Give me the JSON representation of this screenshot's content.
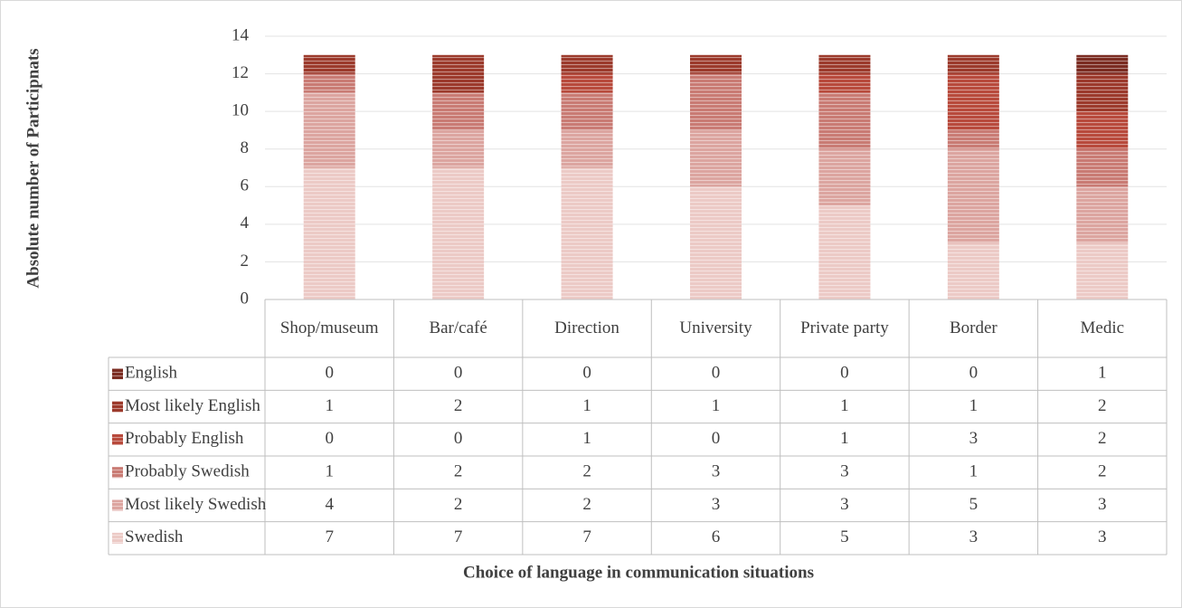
{
  "chart_data": {
    "type": "stacked_bar",
    "ylabel": "Absolute number of Participnats",
    "xlabel": "Choice of language in communication situations",
    "categories": [
      "Shop/museum",
      "Bar/café",
      "Direction",
      "University",
      "Private party",
      "Border",
      "Medic"
    ],
    "series": [
      {
        "name": "English",
        "color": "#7b2c22",
        "values": [
          0,
          0,
          0,
          0,
          0,
          0,
          1
        ]
      },
      {
        "name": "Most likely English",
        "color": "#9c3a2c",
        "values": [
          1,
          2,
          1,
          1,
          1,
          1,
          2
        ]
      },
      {
        "name": "Probably English",
        "color": "#b84a3c",
        "values": [
          0,
          0,
          1,
          0,
          1,
          3,
          2
        ]
      },
      {
        "name": "Probably Swedish",
        "color": "#c97b74",
        "values": [
          1,
          2,
          2,
          3,
          3,
          1,
          2
        ]
      },
      {
        "name": "Most likely Swedish",
        "color": "#dca5a0",
        "values": [
          4,
          2,
          2,
          3,
          3,
          5,
          3
        ]
      },
      {
        "name": "Swedish",
        "color": "#eccac6",
        "values": [
          7,
          7,
          7,
          6,
          5,
          3,
          3
        ]
      }
    ],
    "ylim": [
      0,
      14
    ],
    "yticks": [
      0,
      2,
      4,
      6,
      8,
      10,
      12,
      14
    ],
    "grid": true
  }
}
